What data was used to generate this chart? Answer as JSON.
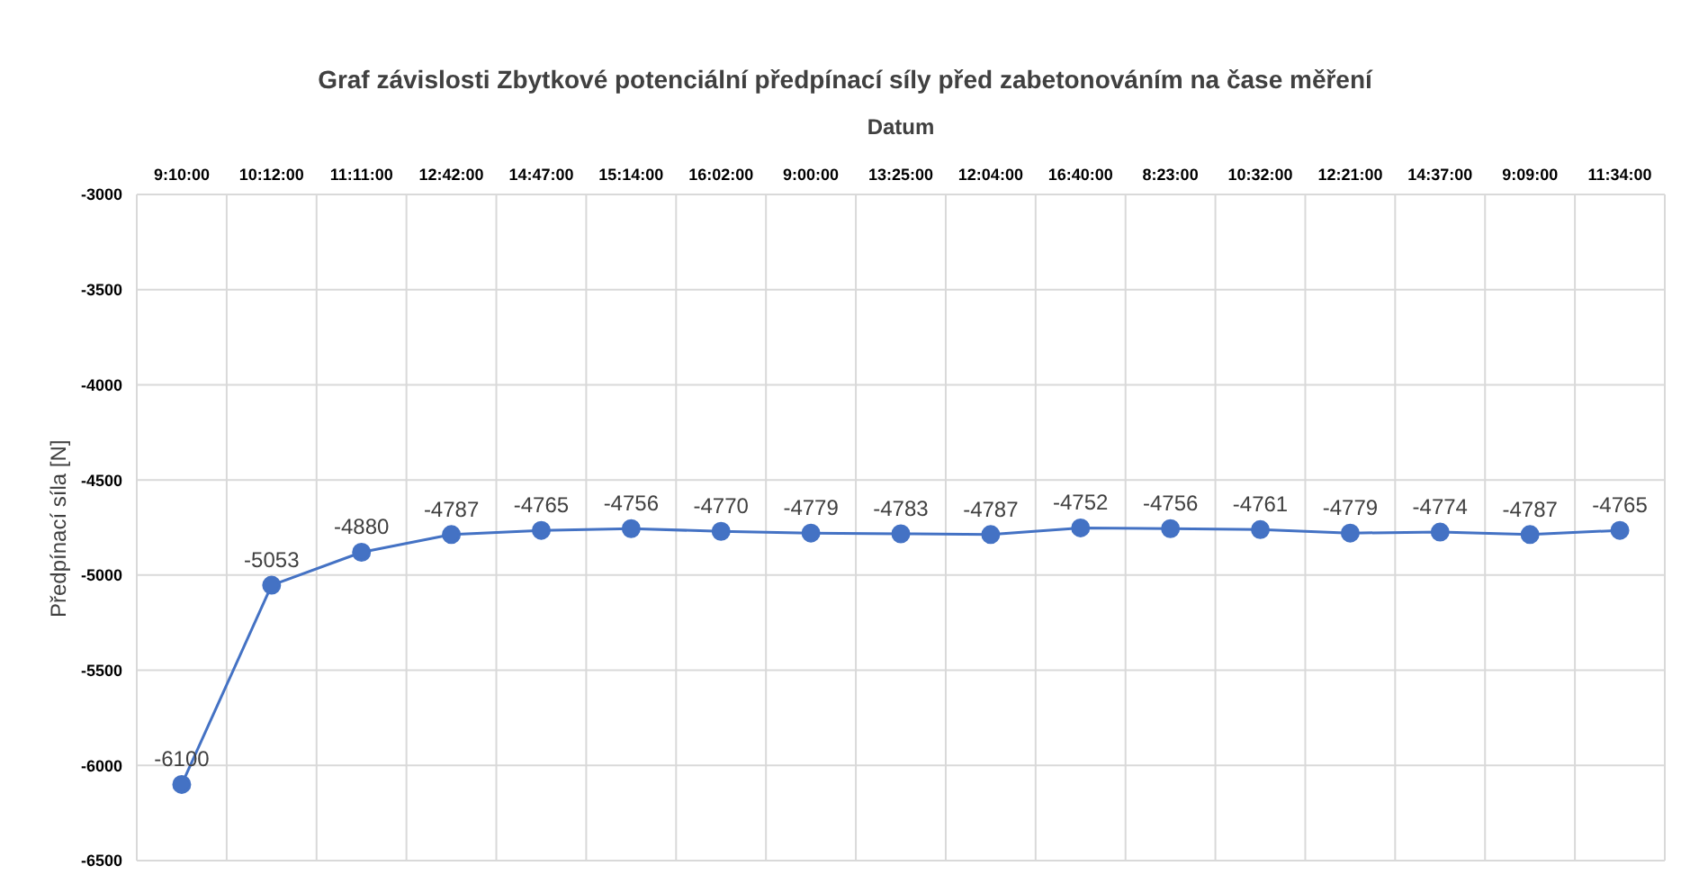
{
  "chart_data": {
    "type": "line",
    "title": "Graf závislosti Zbytkové potenciální předpínací síly před zabetonováním na čase měření",
    "xlabel": "Datum",
    "ylabel": "Předpínací síla [N]",
    "categories": [
      "9:10:00",
      "10:12:00",
      "11:11:00",
      "12:42:00",
      "14:47:00",
      "15:14:00",
      "16:02:00",
      "9:00:00",
      "13:25:00",
      "12:04:00",
      "16:40:00",
      "8:23:00",
      "10:32:00",
      "12:21:00",
      "14:37:00",
      "9:09:00",
      "11:34:00"
    ],
    "series": [
      {
        "color": "#4472c4",
        "values": [
          -6100,
          -5053,
          -4880,
          -4787,
          -4765,
          -4756,
          -4770,
          -4779,
          -4783,
          -4787,
          -4752,
          -4756,
          -4761,
          -4779,
          -4774,
          -4787,
          -4765
        ]
      }
    ],
    "ylim": [
      -6500,
      -3000
    ],
    "yticks": [
      -6500,
      -6000,
      -5500,
      -5000,
      -4500,
      -4000,
      -3500,
      -3000
    ],
    "grid": true,
    "marker": "circle",
    "line_style": "solid",
    "data_labels": true
  }
}
